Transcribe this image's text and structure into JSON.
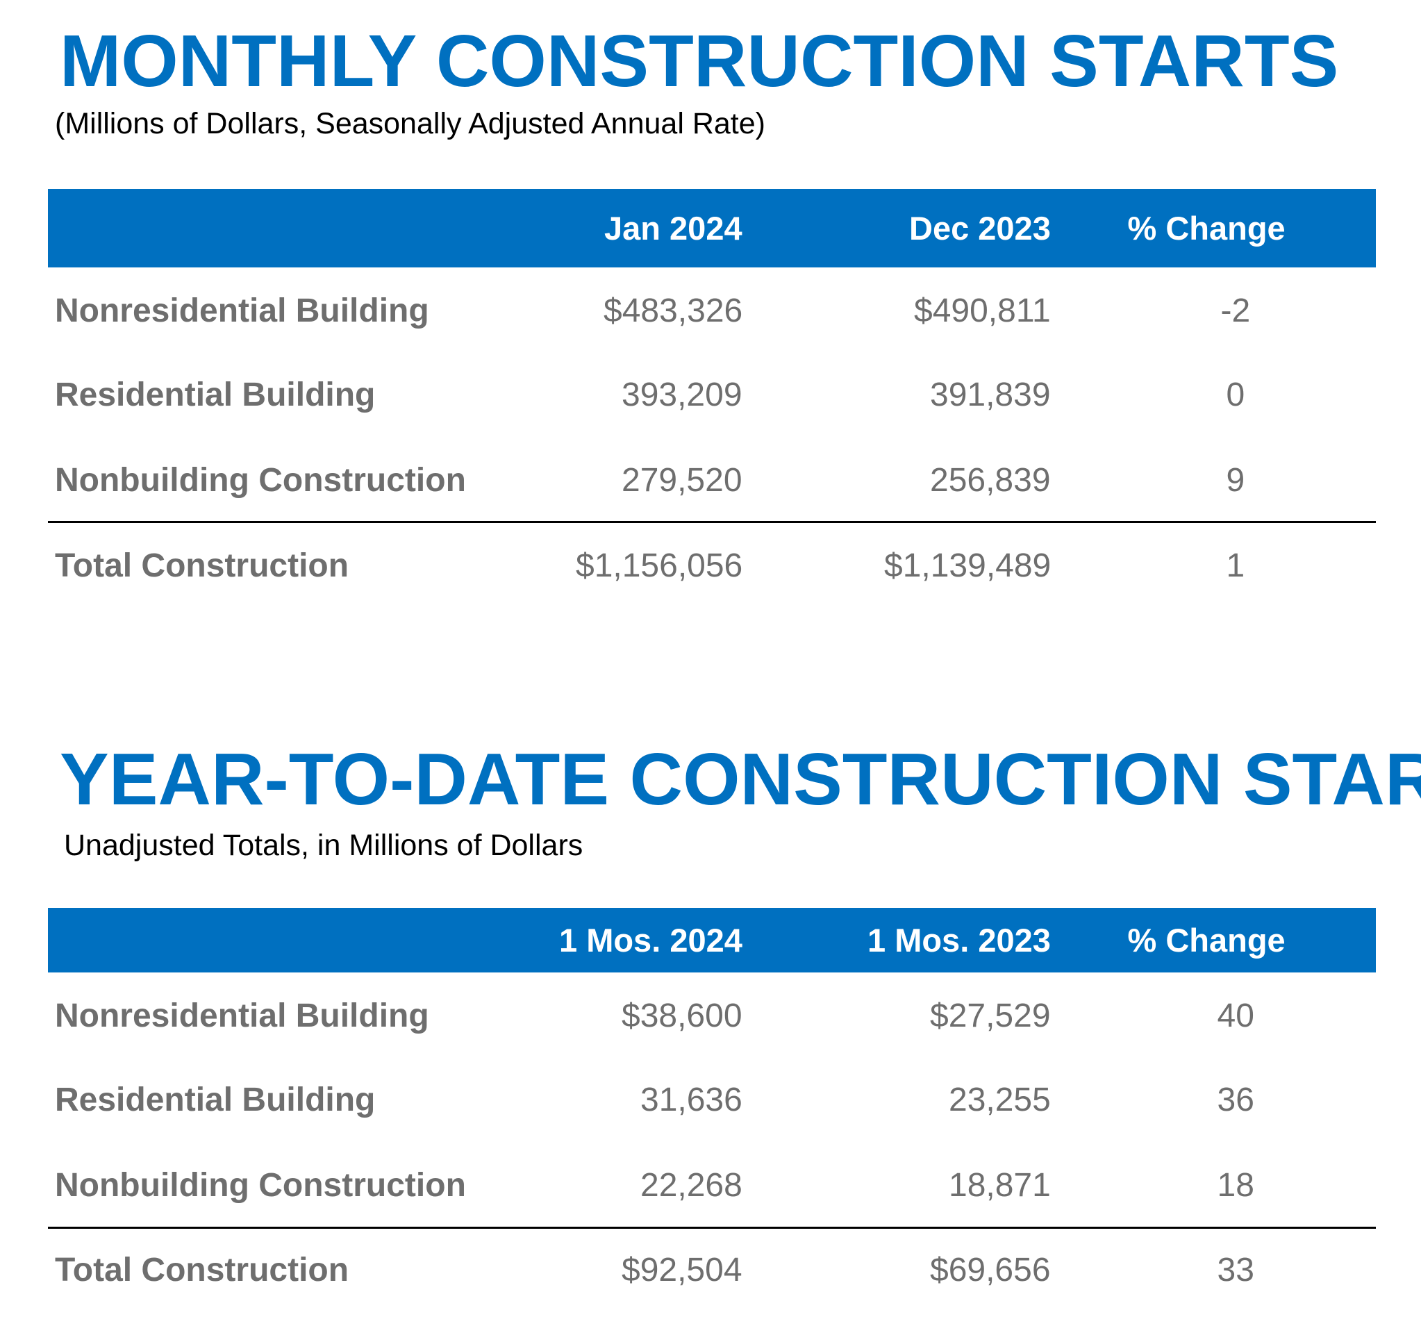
{
  "sections": [
    {
      "title": "MONTHLY CONSTRUCTION STARTS",
      "subtitle": "(Millions of Dollars, Seasonally Adjusted Annual Rate)",
      "table": {
        "header": [
          "Jan 2024",
          "Dec 2023",
          "% Change"
        ],
        "rows": [
          [
            "Nonresidential Building",
            "$483,326",
            "$490,811",
            "-2"
          ],
          [
            "Residential Building",
            "393,209",
            "391,839",
            "0"
          ],
          [
            "Nonbuilding Construction",
            "279,520",
            "256,839",
            "9"
          ],
          [
            "Total Construction",
            "$1,156,056",
            "$1,139,489",
            "1"
          ]
        ]
      }
    },
    {
      "title": "YEAR-TO-DATE CONSTRUCTION STAR",
      "subtitle": "Unadjusted Totals, in Millions of Dollars",
      "table": {
        "header": [
          "1 Mos. 2024",
          "1 Mos. 2023",
          "% Change"
        ],
        "rows": [
          [
            "Nonresidential Building",
            "$38,600",
            "$27,529",
            "40"
          ],
          [
            "Residential Building",
            "31,636",
            "23,255",
            "36"
          ],
          [
            "Nonbuilding Construction",
            "22,268",
            "18,871",
            "18"
          ],
          [
            "Total Construction",
            "$92,504",
            "$69,656",
            "33"
          ]
        ]
      }
    }
  ]
}
